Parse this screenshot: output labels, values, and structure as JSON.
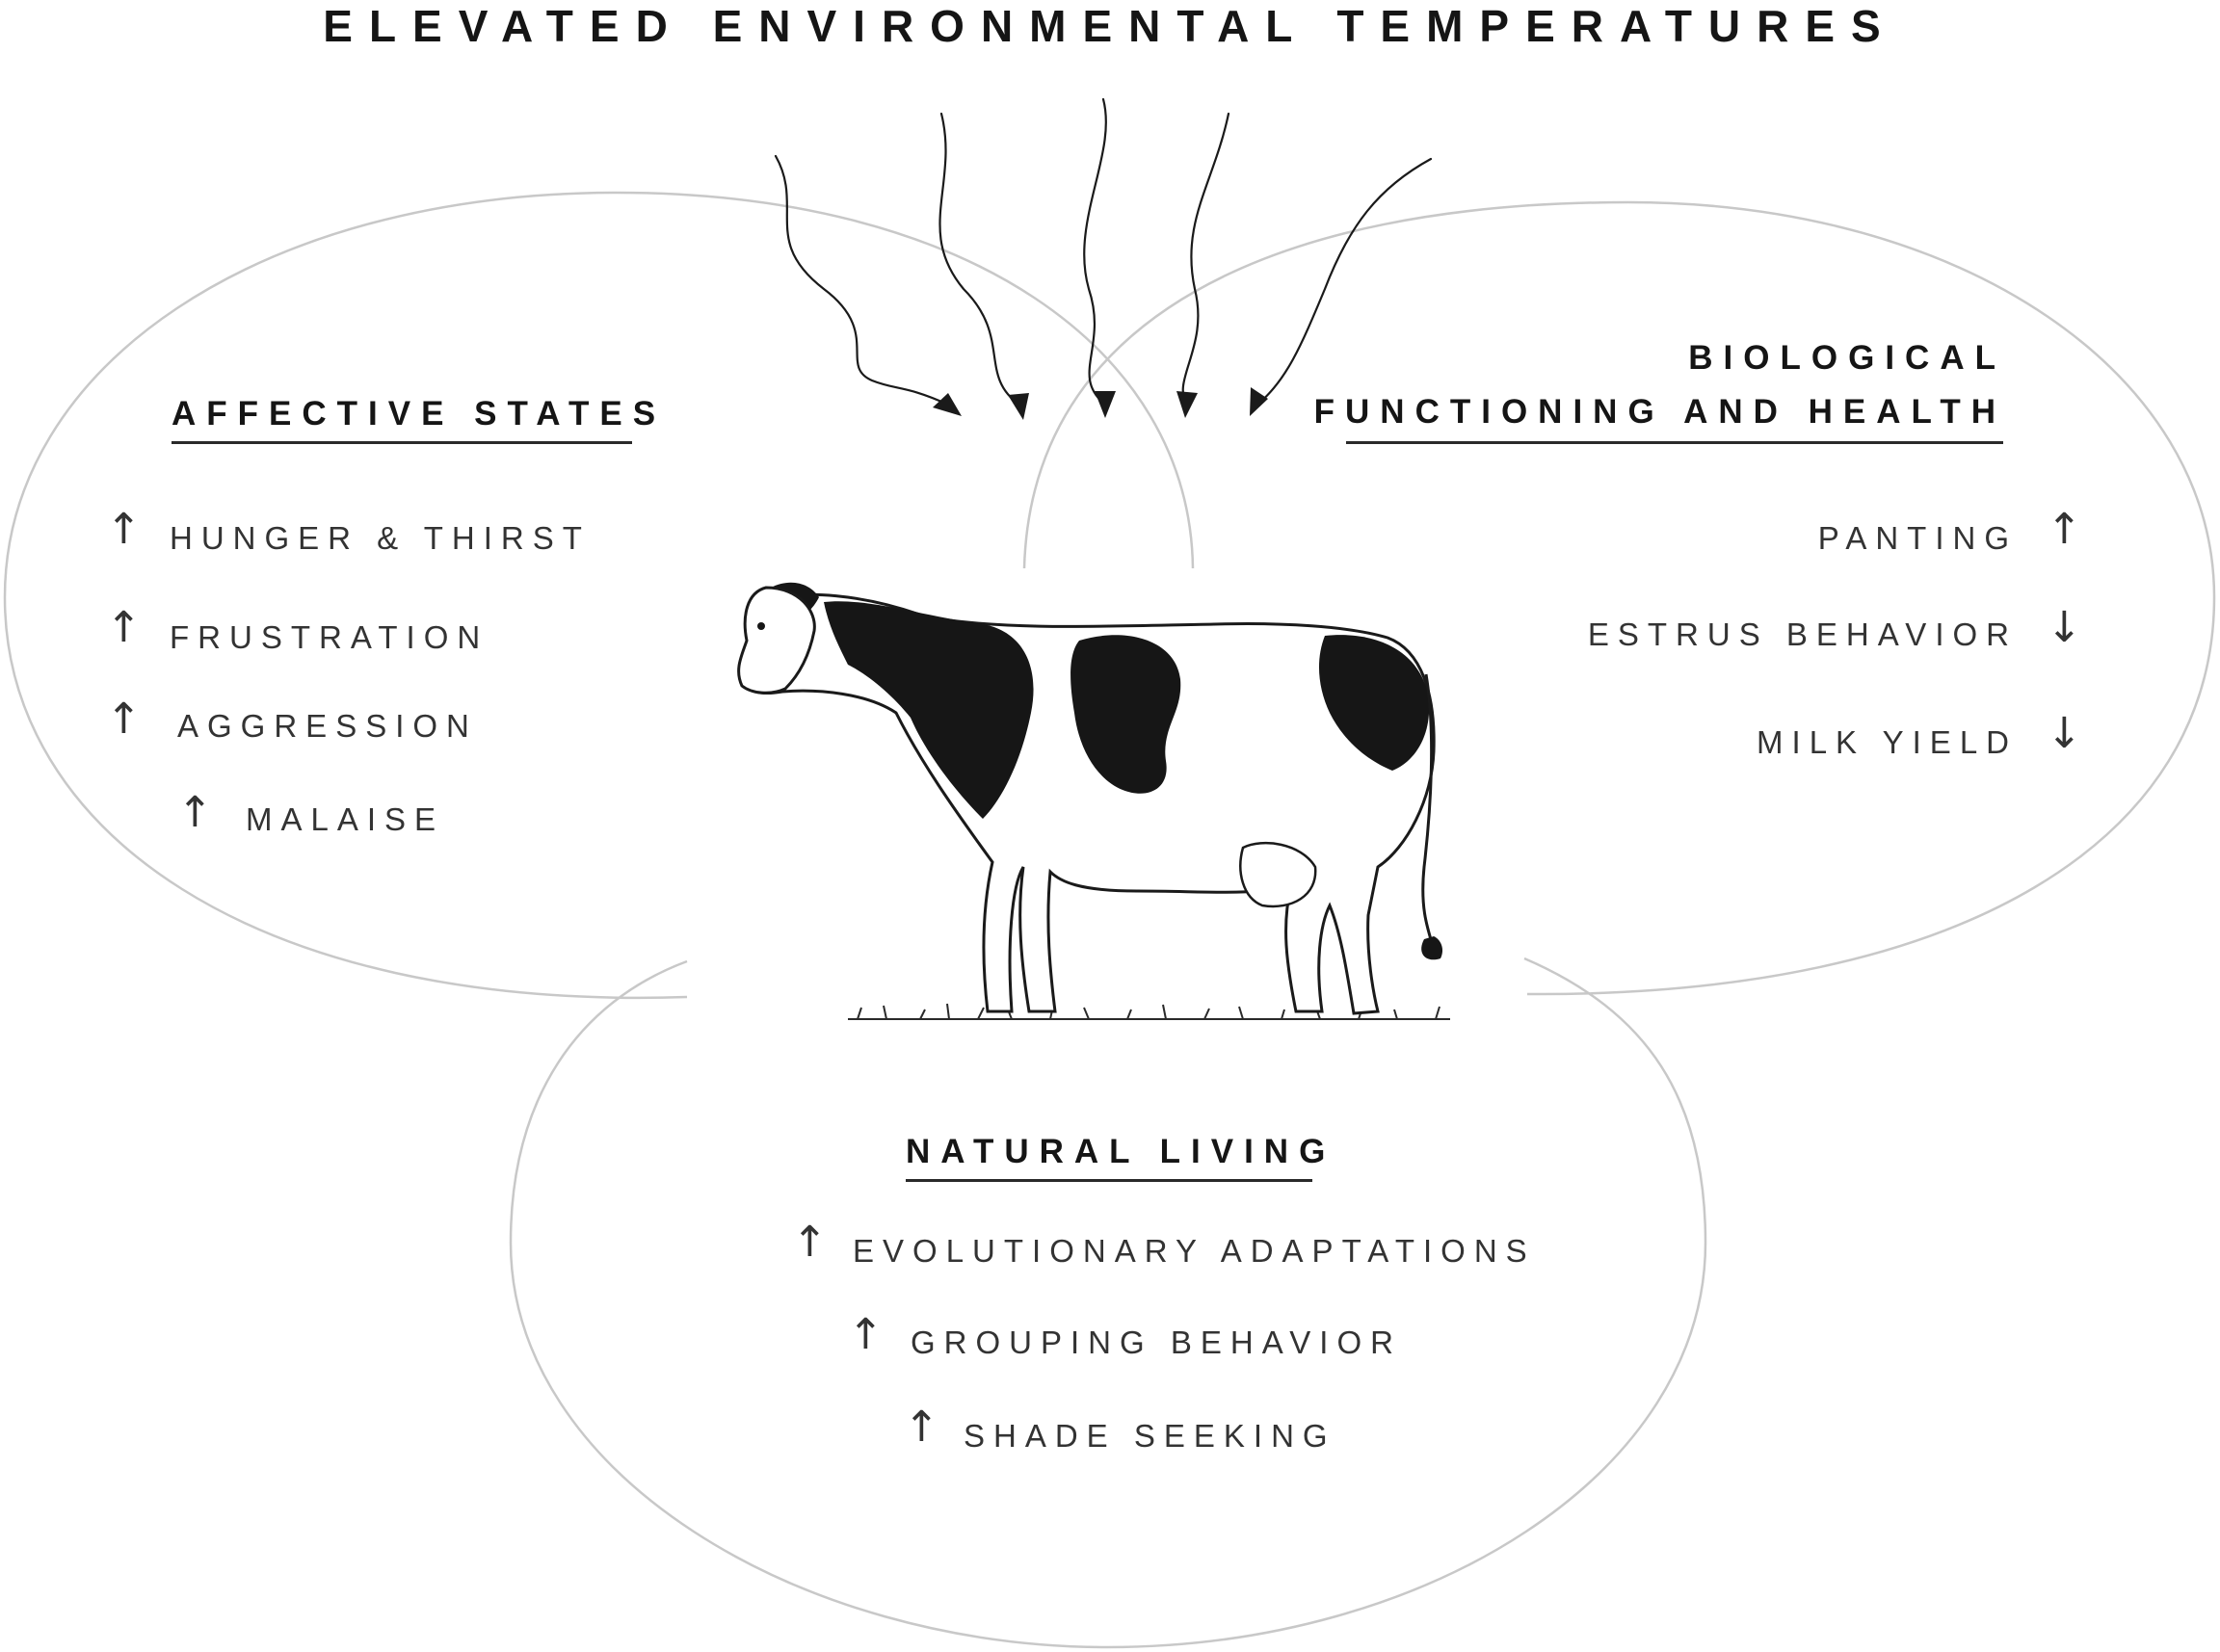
{
  "title": "ELEVATED ENVIRONMENTAL TEMPERATURES",
  "sections": {
    "affective": {
      "heading": "AFFECTIVE STATES",
      "items": [
        {
          "label": "HUNGER & THIRST",
          "direction": "up",
          "arrow": "↑"
        },
        {
          "label": "FRUSTRATION",
          "direction": "up",
          "arrow": "↑"
        },
        {
          "label": "AGGRESSION",
          "direction": "up",
          "arrow": "↑"
        },
        {
          "label": "MALAISE",
          "direction": "up",
          "arrow": "↑"
        }
      ]
    },
    "biological": {
      "heading_line1": "BIOLOGICAL",
      "heading_line2": "FUNCTIONING AND HEALTH",
      "items": [
        {
          "label": "PANTING",
          "direction": "up",
          "arrow": "↑"
        },
        {
          "label": "ESTRUS BEHAVIOR",
          "direction": "down",
          "arrow": "↓"
        },
        {
          "label": "MILK YIELD",
          "direction": "down",
          "arrow": "↓"
        }
      ]
    },
    "natural": {
      "heading": "NATURAL LIVING",
      "items": [
        {
          "label": "EVOLUTIONARY ADAPTATIONS",
          "direction": "up",
          "arrow": "↑"
        },
        {
          "label": "GROUPING BEHAVIOR",
          "direction": "up",
          "arrow": "↑"
        },
        {
          "label": "SHADE SEEKING",
          "direction": "up",
          "arrow": "↑"
        }
      ]
    }
  },
  "illustration": "dairy-cow",
  "heat_arrows": 5,
  "colors": {
    "ellipse_stroke": "#c8c8c8",
    "text": "#333333",
    "heading": "#151515",
    "cow_black": "#161616"
  }
}
